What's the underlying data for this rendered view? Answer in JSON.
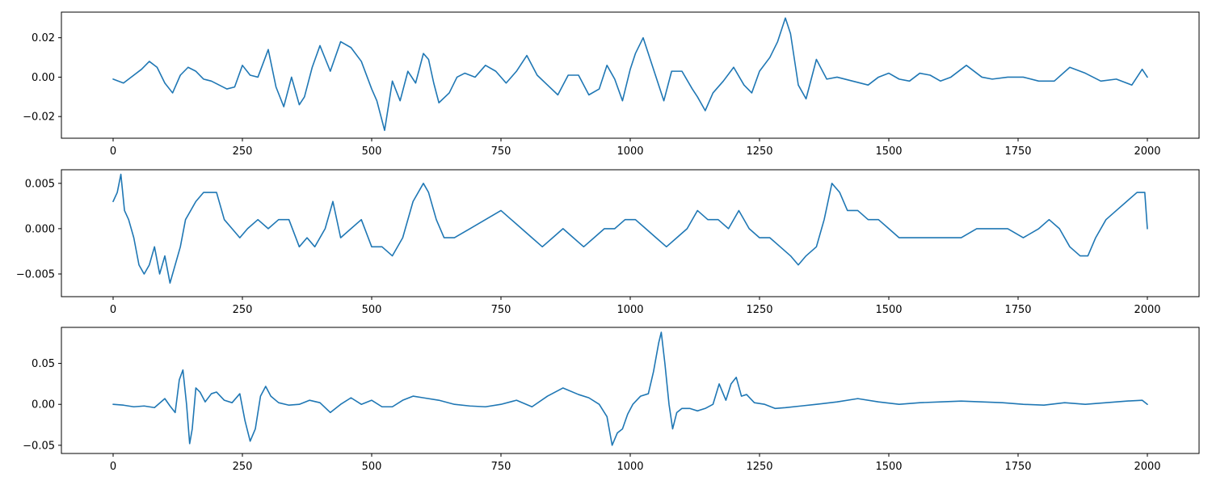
{
  "colors": {
    "line": "#1f77b4",
    "axes": "#000000",
    "background": "#ffffff"
  },
  "chart_data": [
    {
      "type": "line",
      "title": "",
      "xlabel": "",
      "ylabel": "",
      "grid": false,
      "xlim": [
        -100,
        2100
      ],
      "ylim": [
        -0.031,
        0.033
      ],
      "x_ticks": [
        0,
        250,
        500,
        750,
        1000,
        1250,
        1500,
        1750,
        2000
      ],
      "x_tick_labels": [
        "0",
        "250",
        "500",
        "750",
        "1000",
        "1250",
        "1500",
        "1750",
        "2000"
      ],
      "y_ticks": [
        -0.02,
        0.0,
        0.02
      ],
      "y_tick_labels": [
        "−0.02",
        "0.00",
        "0.02"
      ],
      "series": [
        {
          "color": "#1f77b4",
          "x": [
            0,
            20,
            40,
            55,
            70,
            85,
            100,
            115,
            130,
            145,
            160,
            175,
            190,
            205,
            220,
            235,
            250,
            265,
            280,
            300,
            315,
            330,
            345,
            360,
            370,
            385,
            400,
            420,
            440,
            460,
            480,
            500,
            510,
            525,
            540,
            555,
            570,
            585,
            600,
            610,
            620,
            630,
            650,
            665,
            680,
            700,
            720,
            740,
            760,
            780,
            800,
            820,
            840,
            860,
            880,
            900,
            920,
            940,
            955,
            970,
            985,
            1000,
            1010,
            1025,
            1040,
            1055,
            1065,
            1080,
            1100,
            1120,
            1130,
            1145,
            1160,
            1180,
            1200,
            1220,
            1235,
            1250,
            1270,
            1285,
            1300,
            1310,
            1325,
            1340,
            1360,
            1380,
            1400,
            1430,
            1460,
            1480,
            1500,
            1520,
            1540,
            1560,
            1580,
            1600,
            1620,
            1650,
            1680,
            1700,
            1730,
            1760,
            1790,
            1820,
            1850,
            1880,
            1910,
            1940,
            1970,
            1990,
            2000
          ],
          "y": [
            -0.001,
            -0.003,
            0.001,
            0.004,
            0.008,
            0.005,
            -0.003,
            -0.008,
            0.001,
            0.005,
            0.003,
            -0.001,
            -0.002,
            -0.004,
            -0.006,
            -0.005,
            0.006,
            0.001,
            0.0,
            0.014,
            -0.005,
            -0.015,
            0.0,
            -0.014,
            -0.01,
            0.005,
            0.016,
            0.003,
            0.018,
            0.015,
            0.008,
            -0.006,
            -0.012,
            -0.027,
            -0.002,
            -0.012,
            0.003,
            -0.003,
            0.012,
            0.009,
            -0.003,
            -0.013,
            -0.008,
            0.0,
            0.002,
            0.0,
            0.006,
            0.003,
            -0.003,
            0.003,
            0.011,
            0.001,
            -0.004,
            -0.009,
            0.001,
            0.001,
            -0.009,
            -0.006,
            0.006,
            -0.001,
            -0.012,
            0.004,
            0.012,
            0.02,
            0.008,
            -0.004,
            -0.012,
            0.003,
            0.003,
            -0.006,
            -0.01,
            -0.017,
            -0.008,
            -0.002,
            0.005,
            -0.004,
            -0.008,
            0.003,
            0.01,
            0.018,
            0.03,
            0.022,
            -0.004,
            -0.011,
            0.009,
            -0.001,
            0.0,
            -0.002,
            -0.004,
            0.0,
            0.002,
            -0.001,
            -0.002,
            0.002,
            0.001,
            -0.002,
            0.0,
            0.006,
            0.0,
            -0.001,
            0.0,
            0.0,
            -0.002,
            -0.002,
            0.005,
            0.002,
            -0.002,
            -0.001,
            -0.004,
            0.004,
            0.0
          ]
        }
      ]
    },
    {
      "type": "line",
      "title": "",
      "xlabel": "",
      "ylabel": "",
      "grid": false,
      "xlim": [
        -100,
        2100
      ],
      "ylim": [
        -0.0075,
        0.0065
      ],
      "x_ticks": [
        0,
        250,
        500,
        750,
        1000,
        1250,
        1500,
        1750,
        2000
      ],
      "x_tick_labels": [
        "0",
        "250",
        "500",
        "750",
        "1000",
        "1250",
        "1500",
        "1750",
        "2000"
      ],
      "y_ticks": [
        -0.005,
        0.0,
        0.005
      ],
      "y_tick_labels": [
        "−0.005",
        "0.000",
        "0.005"
      ],
      "series": [
        {
          "color": "#1f77b4",
          "x": [
            0,
            8,
            15,
            22,
            30,
            40,
            50,
            60,
            70,
            80,
            90,
            100,
            110,
            120,
            130,
            140,
            150,
            160,
            175,
            190,
            200,
            215,
            230,
            245,
            260,
            280,
            300,
            320,
            340,
            360,
            375,
            390,
            410,
            425,
            440,
            460,
            480,
            500,
            520,
            540,
            560,
            580,
            600,
            610,
            625,
            640,
            660,
            690,
            720,
            750,
            770,
            790,
            810,
            830,
            850,
            870,
            890,
            910,
            930,
            950,
            970,
            990,
            1010,
            1030,
            1050,
            1070,
            1090,
            1110,
            1130,
            1150,
            1170,
            1190,
            1210,
            1230,
            1250,
            1270,
            1290,
            1310,
            1325,
            1340,
            1360,
            1375,
            1390,
            1405,
            1420,
            1440,
            1460,
            1480,
            1500,
            1520,
            1550,
            1580,
            1610,
            1640,
            1670,
            1700,
            1730,
            1760,
            1790,
            1810,
            1830,
            1850,
            1870,
            1885,
            1900,
            1920,
            1940,
            1960,
            1980,
            1995,
            2000
          ],
          "y": [
            0.003,
            0.004,
            0.006,
            0.002,
            0.001,
            -0.001,
            -0.004,
            -0.005,
            -0.004,
            -0.002,
            -0.005,
            -0.003,
            -0.006,
            -0.004,
            -0.002,
            0.001,
            0.002,
            0.003,
            0.004,
            0.004,
            0.004,
            0.001,
            0.0,
            -0.001,
            0.0,
            0.001,
            0.0,
            0.001,
            0.001,
            -0.002,
            -0.001,
            -0.002,
            0.0,
            0.003,
            -0.001,
            0.0,
            0.001,
            -0.002,
            -0.002,
            -0.003,
            -0.001,
            0.003,
            0.005,
            0.004,
            0.001,
            -0.001,
            -0.001,
            0.0,
            0.001,
            0.002,
            0.001,
            0.0,
            -0.001,
            -0.002,
            -0.001,
            0.0,
            -0.001,
            -0.002,
            -0.001,
            0.0,
            0.0,
            0.001,
            0.001,
            0.0,
            -0.001,
            -0.002,
            -0.001,
            0.0,
            0.002,
            0.001,
            0.001,
            0.0,
            0.002,
            0.0,
            -0.001,
            -0.001,
            -0.002,
            -0.003,
            -0.004,
            -0.003,
            -0.002,
            0.001,
            0.005,
            0.004,
            0.002,
            0.002,
            0.001,
            0.001,
            0.0,
            -0.001,
            -0.001,
            -0.001,
            -0.001,
            -0.001,
            0.0,
            0.0,
            0.0,
            -0.001,
            0.0,
            0.001,
            0.0,
            -0.002,
            -0.003,
            -0.003,
            -0.001,
            0.001,
            0.002,
            0.003,
            0.004,
            0.004,
            0.0
          ]
        }
      ]
    },
    {
      "type": "line",
      "title": "",
      "xlabel": "",
      "ylabel": "",
      "grid": false,
      "xlim": [
        -100,
        2100
      ],
      "ylim": [
        -0.06,
        0.094
      ],
      "x_ticks": [
        0,
        250,
        500,
        750,
        1000,
        1250,
        1500,
        1750,
        2000
      ],
      "x_tick_labels": [
        "0",
        "250",
        "500",
        "750",
        "1000",
        "1250",
        "1500",
        "1750",
        "2000"
      ],
      "y_ticks": [
        -0.05,
        0.0,
        0.05
      ],
      "y_tick_labels": [
        "−0.05",
        "0.00",
        "0.05"
      ],
      "series": [
        {
          "color": "#1f77b4",
          "x": [
            0,
            20,
            40,
            60,
            80,
            100,
            110,
            120,
            128,
            135,
            142,
            148,
            153,
            160,
            168,
            178,
            190,
            200,
            215,
            230,
            245,
            255,
            265,
            275,
            285,
            295,
            305,
            320,
            340,
            360,
            380,
            400,
            420,
            440,
            460,
            480,
            500,
            520,
            540,
            560,
            580,
            600,
            630,
            660,
            690,
            720,
            750,
            780,
            810,
            840,
            870,
            900,
            920,
            940,
            955,
            965,
            975,
            985,
            995,
            1005,
            1020,
            1035,
            1045,
            1055,
            1060,
            1067,
            1075,
            1082,
            1090,
            1100,
            1115,
            1130,
            1145,
            1160,
            1172,
            1185,
            1195,
            1205,
            1215,
            1225,
            1240,
            1260,
            1280,
            1300,
            1330,
            1360,
            1400,
            1440,
            1480,
            1520,
            1560,
            1600,
            1640,
            1680,
            1720,
            1760,
            1800,
            1840,
            1880,
            1920,
            1960,
            1990,
            2000
          ],
          "y": [
            0.0,
            -0.001,
            -0.003,
            -0.002,
            -0.004,
            0.007,
            -0.002,
            -0.01,
            0.03,
            0.042,
            0.0,
            -0.048,
            -0.03,
            0.02,
            0.015,
            0.003,
            0.013,
            0.015,
            0.005,
            0.002,
            0.013,
            -0.02,
            -0.045,
            -0.03,
            0.01,
            0.022,
            0.01,
            0.002,
            -0.001,
            0.0,
            0.005,
            0.002,
            -0.01,
            0.0,
            0.008,
            0.0,
            0.005,
            -0.003,
            -0.003,
            0.005,
            0.01,
            0.008,
            0.005,
            0.0,
            -0.002,
            -0.003,
            0.0,
            0.005,
            -0.003,
            0.01,
            0.02,
            0.012,
            0.008,
            0.0,
            -0.015,
            -0.05,
            -0.035,
            -0.03,
            -0.012,
            0.0,
            0.01,
            0.013,
            0.04,
            0.075,
            0.088,
            0.05,
            0.0,
            -0.03,
            -0.01,
            -0.005,
            -0.005,
            -0.008,
            -0.005,
            0.0,
            0.025,
            0.005,
            0.025,
            0.033,
            0.01,
            0.012,
            0.002,
            0.0,
            -0.005,
            -0.004,
            -0.002,
            0.0,
            0.003,
            0.007,
            0.003,
            0.0,
            0.002,
            0.003,
            0.004,
            0.003,
            0.002,
            0.0,
            -0.001,
            0.002,
            0.0,
            0.002,
            0.004,
            0.005,
            0.0
          ]
        }
      ]
    }
  ]
}
